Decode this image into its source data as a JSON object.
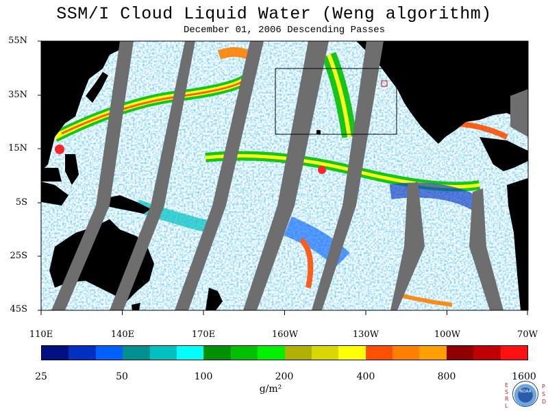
{
  "title": "SSM/I Cloud Liquid Water (Weng algorithm)",
  "subtitle": "December 01, 2006  Descending Passes",
  "lat_labels": [
    "55N",
    "35N",
    "15N",
    "5S",
    "25S",
    "45S"
  ],
  "lon_labels": [
    "110E",
    "140E",
    "170E",
    "160W",
    "130W",
    "100W",
    "70W"
  ],
  "colorbar": {
    "tick_labels": [
      "25",
      "50",
      "100",
      "200",
      "400",
      "800",
      "1600"
    ],
    "units": "g/m²",
    "colors": [
      "#001080",
      "#0030c0",
      "#0060ff",
      "#009090",
      "#00c0c0",
      "#00ffff",
      "#009000",
      "#00c000",
      "#00f000",
      "#b0b000",
      "#d8d800",
      "#ffff00",
      "#ff5000",
      "#ff8000",
      "#ffa000",
      "#900000",
      "#c00000",
      "#ff1010"
    ]
  },
  "logo": {
    "left_letters": [
      "E",
      "S",
      "R",
      "L"
    ],
    "right_letters": [
      "P",
      "S",
      "D"
    ],
    "emblem_text": "NOAA"
  },
  "map_colors": {
    "land": "#000000",
    "gap": "#6e6e6e",
    "ocean": "#ffffff",
    "box": "#000000",
    "marker": "#e00000"
  }
}
